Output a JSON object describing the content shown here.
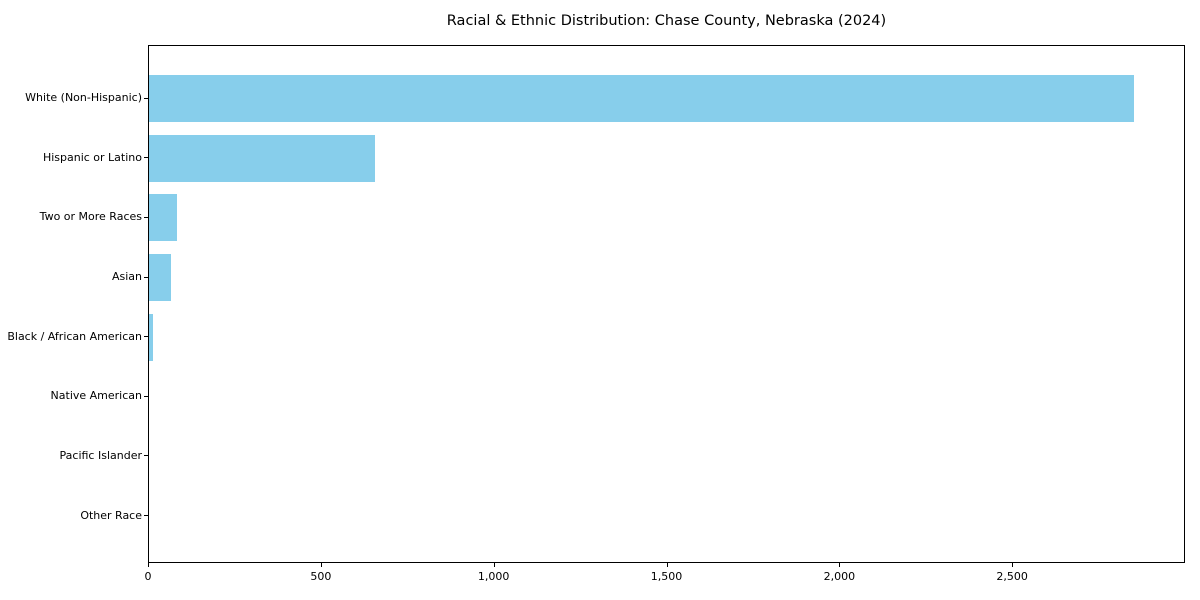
{
  "chart_data": {
    "type": "bar",
    "orientation": "horizontal",
    "title": "Racial & Ethnic Distribution: Chase County, Nebraska (2024)",
    "categories": [
      "White (Non-Hispanic)",
      "Hispanic or Latino",
      "Two or More Races",
      "Asian",
      "Black / African American",
      "Native American",
      "Pacific Islander",
      "Other Race"
    ],
    "values": [
      2850,
      655,
      80,
      64,
      12,
      0,
      0,
      0
    ],
    "xlabel": "",
    "ylabel": "",
    "xlim": [
      0,
      3000
    ],
    "xticks": [
      0,
      500,
      1000,
      1500,
      2000,
      2500
    ],
    "xtick_labels": [
      "0",
      "500",
      "1,000",
      "1,500",
      "2,000",
      "2,500"
    ],
    "bar_color": "#87CEEB",
    "axis_color": "#000000",
    "text_color": "#000000",
    "background_color": "#ffffff",
    "grid": false,
    "legend": false
  }
}
